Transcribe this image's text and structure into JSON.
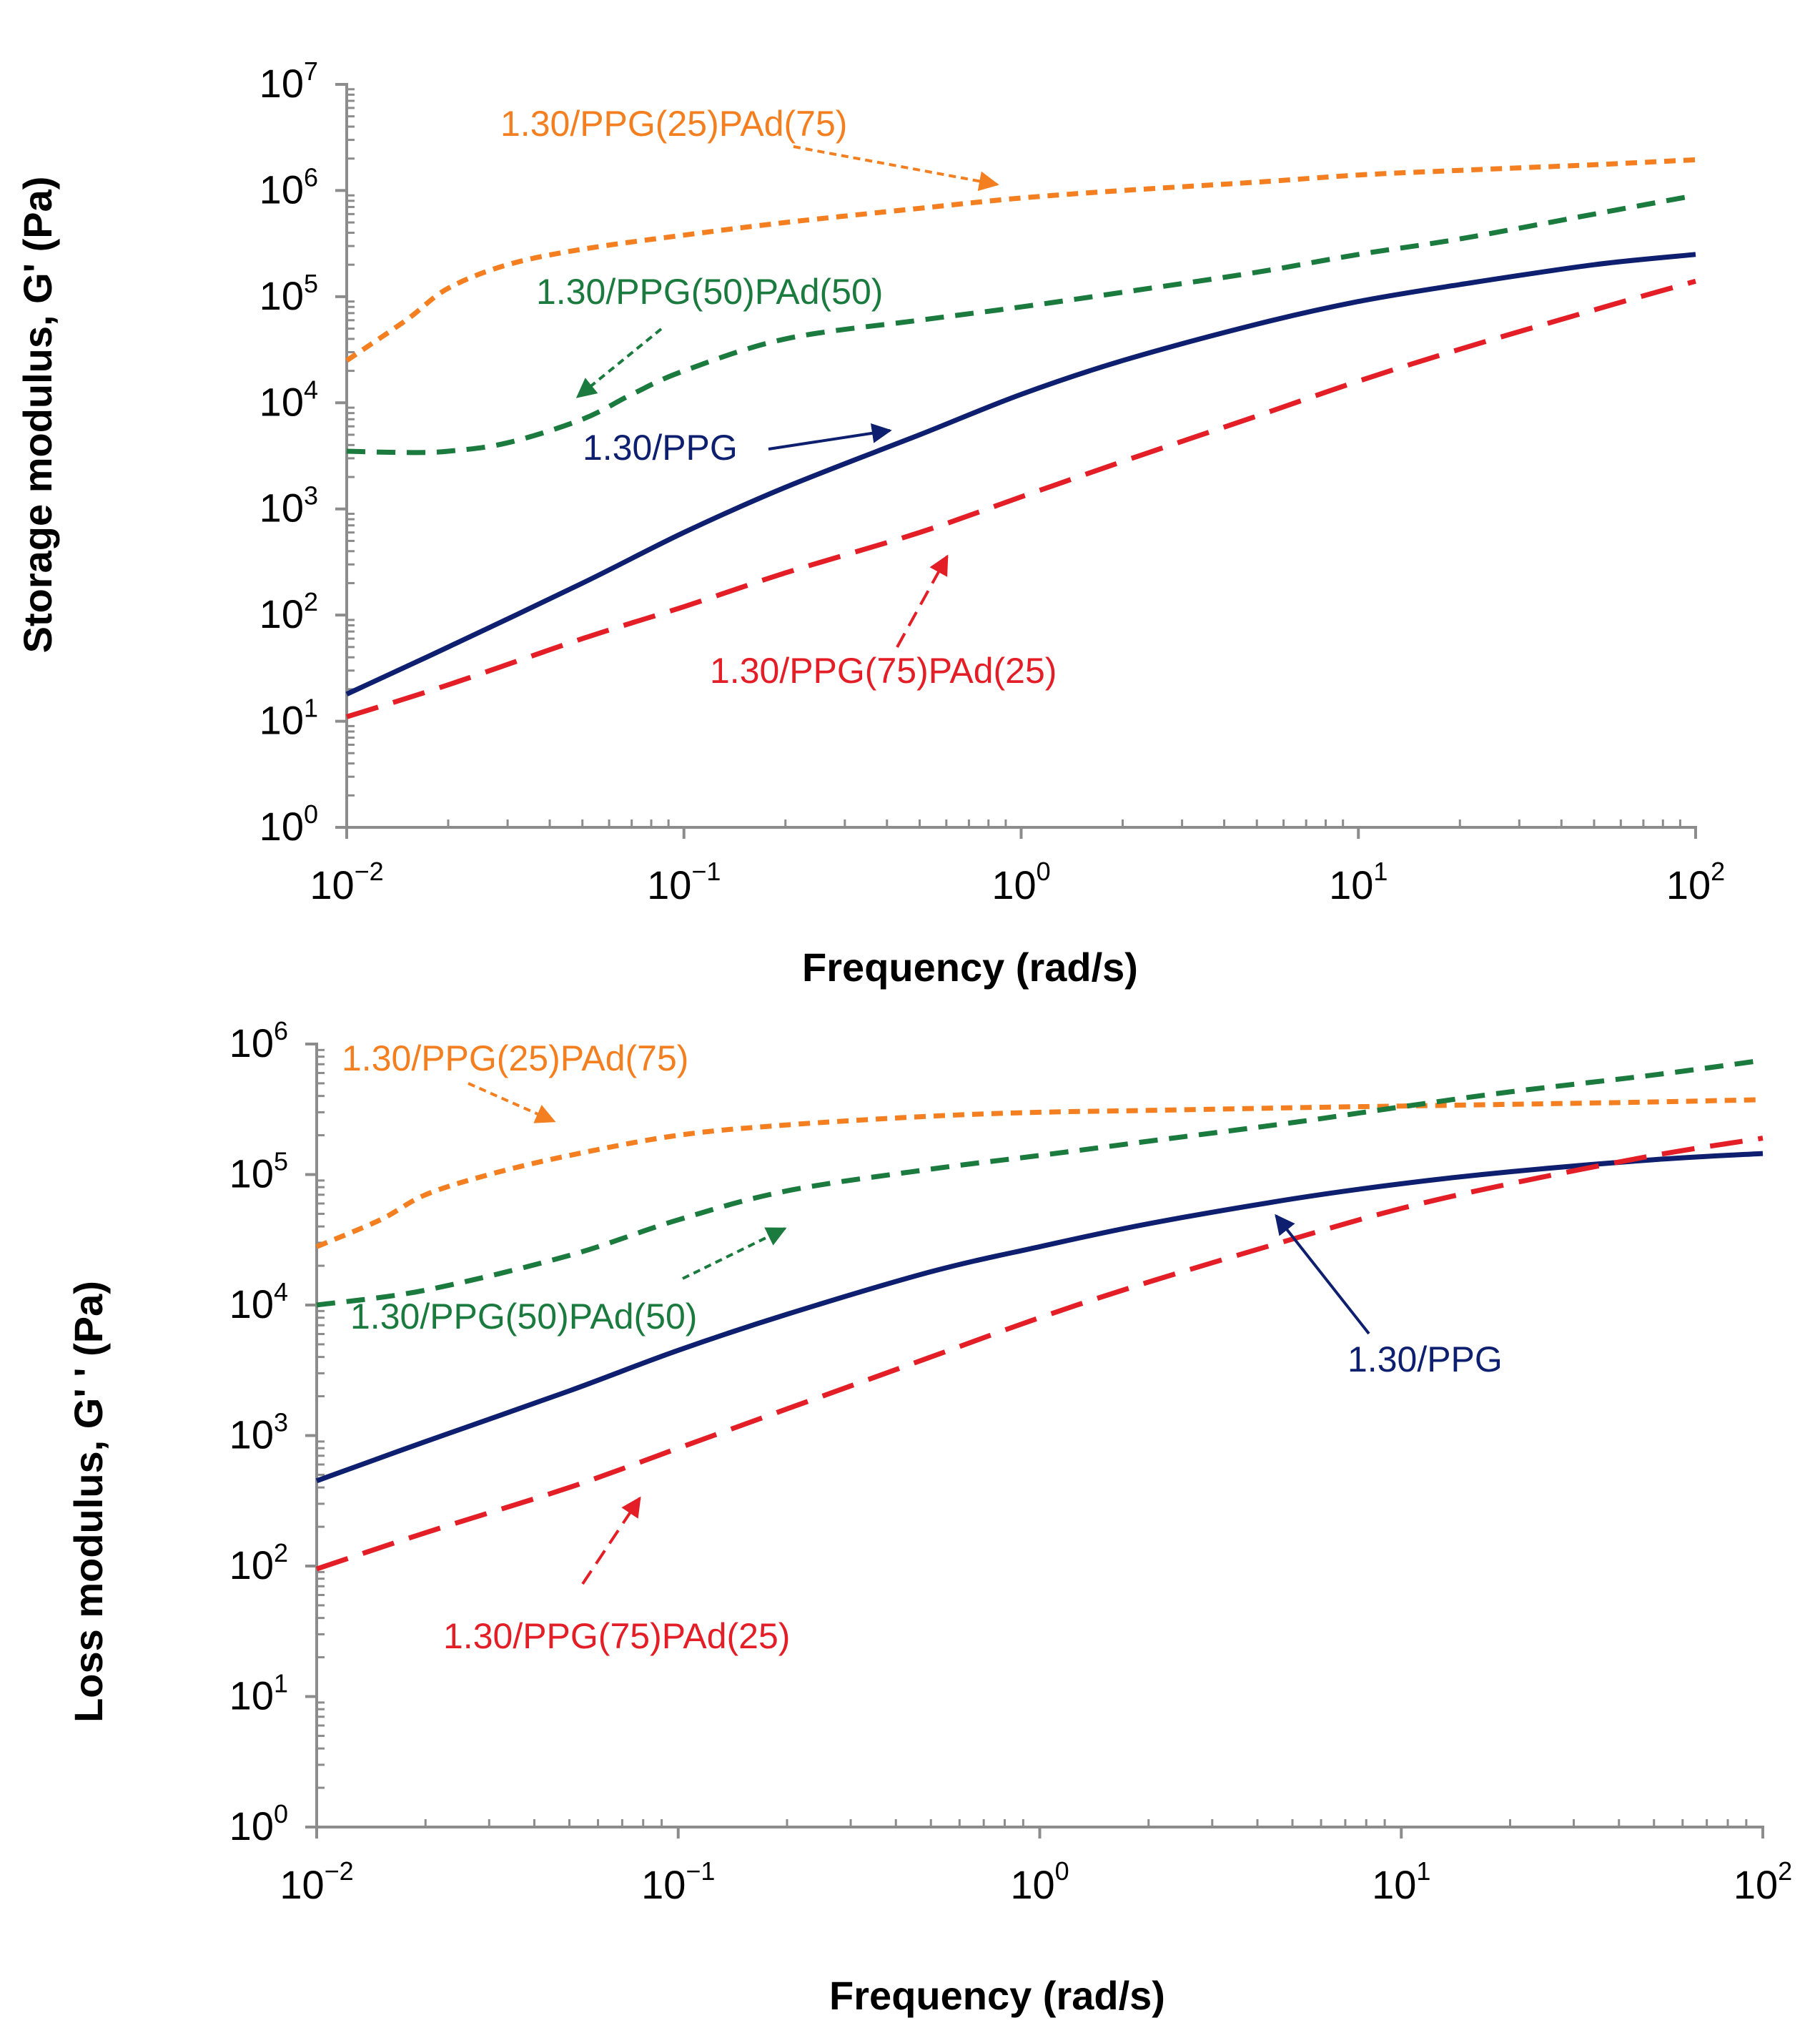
{
  "chart_data": [
    {
      "type": "line",
      "title": "",
      "xlabel": "Frequency (rad/s)",
      "ylabel": "Storage modulus, G' (Pa)",
      "xscale": "log",
      "yscale": "log",
      "xlim": [
        0.01,
        100
      ],
      "ylim": [
        1,
        10000000
      ],
      "x_ticks": [
        {
          "base": "10",
          "exp": "−2"
        },
        {
          "base": "10",
          "exp": "−1"
        },
        {
          "base": "10",
          "exp": "0"
        },
        {
          "base": "10",
          "exp": "1"
        },
        {
          "base": "10",
          "exp": "2"
        }
      ],
      "y_ticks": [
        {
          "base": "10",
          "exp": "0"
        },
        {
          "base": "10",
          "exp": "1"
        },
        {
          "base": "10",
          "exp": "2"
        },
        {
          "base": "10",
          "exp": "3"
        },
        {
          "base": "10",
          "exp": "4"
        },
        {
          "base": "10",
          "exp": "5"
        },
        {
          "base": "10",
          "exp": "6"
        },
        {
          "base": "10",
          "exp": "7"
        }
      ],
      "grid": false,
      "legend": "none (inline labels with arrows)",
      "series": [
        {
          "name": "1.30/PPG(25)PAd(75)",
          "color": "#F47F20",
          "style": "short-dash",
          "x": [
            0.01,
            0.015,
            0.02,
            0.03,
            0.05,
            0.1,
            0.2,
            0.5,
            1,
            2,
            5,
            10,
            20,
            50,
            100
          ],
          "y": [
            25000,
            60000,
            120000,
            200000,
            280000,
            380000,
            500000,
            680000,
            850000,
            1000000,
            1200000,
            1400000,
            1550000,
            1750000,
            1950000
          ]
        },
        {
          "name": "1.30/PPG(50)PAd(50)",
          "color": "#1B7A3E",
          "style": "dash",
          "x": [
            0.01,
            0.015,
            0.02,
            0.03,
            0.05,
            0.07,
            0.1,
            0.2,
            0.5,
            1,
            2,
            5,
            10,
            20,
            50,
            100
          ],
          "y": [
            3500,
            3400,
            3500,
            4200,
            7000,
            12000,
            20000,
            40000,
            60000,
            80000,
            110000,
            170000,
            250000,
            350000,
            600000,
            900000
          ]
        },
        {
          "name": "1.30/PPG",
          "color": "#0D1F6E",
          "style": "solid",
          "x": [
            0.01,
            0.02,
            0.05,
            0.1,
            0.2,
            0.5,
            1,
            2,
            5,
            10,
            20,
            50,
            100
          ],
          "y": [
            18,
            50,
            200,
            600,
            1600,
            5000,
            12000,
            25000,
            55000,
            90000,
            130000,
            200000,
            250000
          ]
        },
        {
          "name": "1.30/PPG(75)PAd(25)",
          "color": "#E41E26",
          "style": "long-dash",
          "x": [
            0.01,
            0.02,
            0.05,
            0.1,
            0.2,
            0.5,
            1,
            2,
            5,
            10,
            20,
            50,
            100
          ],
          "y": [
            11,
            22,
            60,
            120,
            250,
            600,
            1300,
            2800,
            7500,
            16000,
            32000,
            75000,
            140000
          ]
        }
      ],
      "annotations": [
        {
          "text": "1.30/PPG(25)PAd(75)",
          "color": "#F47F20"
        },
        {
          "text": "1.30/PPG(50)PAd(50)",
          "color": "#1B7A3E"
        },
        {
          "text": "1.30/PPG",
          "color": "#0D1F6E"
        },
        {
          "text": "1.30/PPG(75)PAd(25)",
          "color": "#E41E26"
        }
      ]
    },
    {
      "type": "line",
      "title": "",
      "xlabel": "Frequency (rad/s)",
      "ylabel": "Loss modulus, G' ' (Pa)",
      "xscale": "log",
      "yscale": "log",
      "xlim": [
        0.01,
        100
      ],
      "ylim": [
        1,
        1000000
      ],
      "x_ticks": [
        {
          "base": "10",
          "exp": "−2"
        },
        {
          "base": "10",
          "exp": "−1"
        },
        {
          "base": "10",
          "exp": "0"
        },
        {
          "base": "10",
          "exp": "1"
        },
        {
          "base": "10",
          "exp": "2"
        }
      ],
      "y_ticks": [
        {
          "base": "10",
          "exp": "0"
        },
        {
          "base": "10",
          "exp": "1"
        },
        {
          "base": "10",
          "exp": "2"
        },
        {
          "base": "10",
          "exp": "3"
        },
        {
          "base": "10",
          "exp": "4"
        },
        {
          "base": "10",
          "exp": "5"
        },
        {
          "base": "10",
          "exp": "6"
        }
      ],
      "grid": false,
      "legend": "none (inline labels with arrows)",
      "series": [
        {
          "name": "1.30/PPG(25)PAd(75)",
          "color": "#F47F20",
          "style": "short-dash",
          "x": [
            0.01,
            0.015,
            0.02,
            0.03,
            0.05,
            0.1,
            0.2,
            0.5,
            1,
            2,
            5,
            10,
            20,
            50,
            100
          ],
          "y": [
            28000,
            45000,
            70000,
            100000,
            140000,
            200000,
            240000,
            280000,
            300000,
            310000,
            325000,
            335000,
            345000,
            360000,
            375000
          ]
        },
        {
          "name": "1.30/PPG(50)PAd(50)",
          "color": "#1B7A3E",
          "style": "dash",
          "x": [
            0.01,
            0.02,
            0.05,
            0.1,
            0.2,
            0.5,
            1,
            2,
            5,
            10,
            20,
            50,
            100
          ],
          "y": [
            10000,
            13000,
            24000,
            45000,
            75000,
            110000,
            140000,
            180000,
            250000,
            330000,
            430000,
            580000,
            750000
          ]
        },
        {
          "name": "1.30/PPG",
          "color": "#0D1F6E",
          "style": "solid",
          "x": [
            0.01,
            0.02,
            0.05,
            0.1,
            0.2,
            0.5,
            1,
            2,
            5,
            10,
            20,
            50,
            100
          ],
          "y": [
            450,
            900,
            2200,
            4500,
            8500,
            18000,
            28000,
            42000,
            65000,
            85000,
            105000,
            130000,
            145000
          ]
        },
        {
          "name": "1.30/PPG(75)PAd(25)",
          "color": "#E41E26",
          "style": "long-dash",
          "x": [
            0.01,
            0.02,
            0.05,
            0.1,
            0.2,
            0.5,
            1,
            2,
            5,
            10,
            20,
            50,
            100
          ],
          "y": [
            95,
            180,
            400,
            800,
            1600,
            4000,
            8000,
            15000,
            32000,
            55000,
            85000,
            140000,
            190000
          ]
        }
      ],
      "annotations": [
        {
          "text": "1.30/PPG(25)PAd(75)",
          "color": "#F47F20"
        },
        {
          "text": "1.30/PPG(50)PAd(50)",
          "color": "#1B7A3E"
        },
        {
          "text": "1.30/PPG",
          "color": "#0D1F6E"
        },
        {
          "text": "1.30/PPG(75)PAd(25)",
          "color": "#E41E26"
        }
      ]
    }
  ]
}
